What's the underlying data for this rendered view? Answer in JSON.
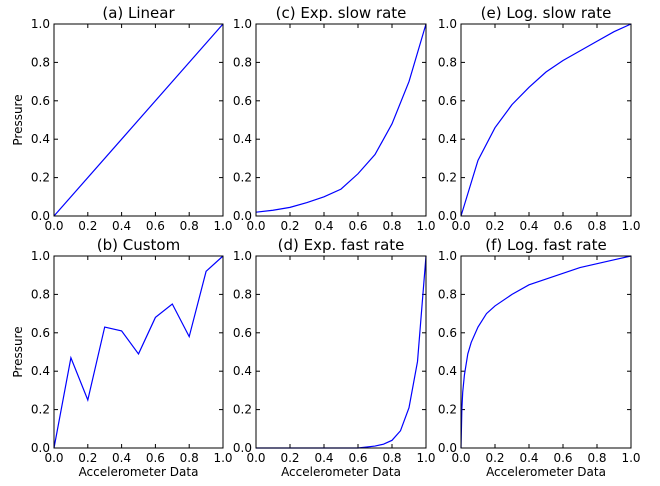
{
  "chart_data": [
    {
      "type": "line",
      "title": "(a) Linear",
      "xlabel": "",
      "ylabel": "Pressure",
      "xlim": [
        0.0,
        1.0
      ],
      "ylim": [
        0.0,
        1.0
      ],
      "xticks": [
        "0.0",
        "0.2",
        "0.4",
        "0.6",
        "0.8",
        "1.0"
      ],
      "yticks": [
        "0.0",
        "0.2",
        "0.4",
        "0.6",
        "0.8",
        "1.0"
      ],
      "grid": false,
      "series": [
        {
          "color": "#0000ff",
          "x": [
            0.0,
            1.0
          ],
          "y": [
            0.0,
            1.0
          ]
        }
      ]
    },
    {
      "type": "line",
      "title": "(c) Exp. slow rate",
      "xlabel": "",
      "ylabel": "",
      "xlim": [
        0.0,
        1.0
      ],
      "ylim": [
        0.0,
        1.0
      ],
      "xticks": [
        "0.0",
        "0.2",
        "0.4",
        "0.6",
        "0.8",
        "1.0"
      ],
      "yticks": [
        "0.0",
        "0.2",
        "0.4",
        "0.6",
        "0.8",
        "1.0"
      ],
      "grid": false,
      "series": [
        {
          "color": "#0000ff",
          "x": [
            0.0,
            0.1,
            0.2,
            0.3,
            0.4,
            0.5,
            0.6,
            0.7,
            0.8,
            0.9,
            1.0
          ],
          "y": [
            0.02,
            0.03,
            0.045,
            0.07,
            0.1,
            0.14,
            0.22,
            0.32,
            0.48,
            0.7,
            1.0
          ]
        }
      ]
    },
    {
      "type": "line",
      "title": "(e) Log. slow rate",
      "xlabel": "",
      "ylabel": "",
      "xlim": [
        0.0,
        1.0
      ],
      "ylim": [
        0.0,
        1.0
      ],
      "xticks": [
        "0.0",
        "0.2",
        "0.4",
        "0.6",
        "0.8",
        "1.0"
      ],
      "yticks": [
        "0.0",
        "0.2",
        "0.4",
        "0.6",
        "0.8",
        "1.0"
      ],
      "grid": false,
      "series": [
        {
          "color": "#0000ff",
          "x": [
            0.0,
            0.1,
            0.2,
            0.3,
            0.4,
            0.5,
            0.6,
            0.7,
            0.8,
            0.9,
            1.0
          ],
          "y": [
            0.0,
            0.29,
            0.46,
            0.58,
            0.67,
            0.75,
            0.81,
            0.86,
            0.91,
            0.96,
            1.0
          ]
        }
      ]
    },
    {
      "type": "line",
      "title": "(b) Custom",
      "xlabel": "Accelerometer Data",
      "ylabel": "Pressure",
      "xlim": [
        0.0,
        1.0
      ],
      "ylim": [
        0.0,
        1.0
      ],
      "xticks": [
        "0.0",
        "0.2",
        "0.4",
        "0.6",
        "0.8",
        "1.0"
      ],
      "yticks": [
        "0.0",
        "0.2",
        "0.4",
        "0.6",
        "0.8",
        "1.0"
      ],
      "grid": false,
      "series": [
        {
          "color": "#0000ff",
          "x": [
            0.0,
            0.1,
            0.2,
            0.3,
            0.4,
            0.5,
            0.6,
            0.7,
            0.8,
            0.9,
            1.0
          ],
          "y": [
            0.0,
            0.47,
            0.25,
            0.63,
            0.61,
            0.49,
            0.68,
            0.75,
            0.58,
            0.92,
            1.0
          ]
        }
      ]
    },
    {
      "type": "line",
      "title": "(d) Exp. fast rate",
      "xlabel": "Accelerometer Data",
      "ylabel": "",
      "xlim": [
        0.0,
        1.0
      ],
      "ylim": [
        0.0,
        1.0
      ],
      "xticks": [
        "0.0",
        "0.2",
        "0.4",
        "0.6",
        "0.8",
        "1.0"
      ],
      "yticks": [
        "0.0",
        "0.2",
        "0.4",
        "0.6",
        "0.8",
        "1.0"
      ],
      "grid": false,
      "series": [
        {
          "color": "#0000ff",
          "x": [
            0.0,
            0.5,
            0.6,
            0.7,
            0.75,
            0.8,
            0.85,
            0.9,
            0.95,
            1.0
          ],
          "y": [
            0.0,
            0.0,
            0.0,
            0.01,
            0.02,
            0.04,
            0.09,
            0.21,
            0.45,
            1.0
          ]
        }
      ]
    },
    {
      "type": "line",
      "title": "(f) Log. fast rate",
      "xlabel": "Accelerometer Data",
      "ylabel": "",
      "xlim": [
        0.0,
        1.0
      ],
      "ylim": [
        0.0,
        1.0
      ],
      "xticks": [
        "0.0",
        "0.2",
        "0.4",
        "0.6",
        "0.8",
        "1.0"
      ],
      "yticks": [
        "0.0",
        "0.2",
        "0.4",
        "0.6",
        "0.8",
        "1.0"
      ],
      "grid": false,
      "series": [
        {
          "color": "#0000ff",
          "x": [
            0.0,
            0.005,
            0.01,
            0.02,
            0.04,
            0.06,
            0.1,
            0.15,
            0.2,
            0.3,
            0.4,
            0.5,
            0.6,
            0.7,
            0.8,
            0.9,
            1.0
          ],
          "y": [
            0.0,
            0.2,
            0.29,
            0.38,
            0.49,
            0.55,
            0.63,
            0.7,
            0.74,
            0.8,
            0.85,
            0.88,
            0.91,
            0.94,
            0.96,
            0.98,
            1.0
          ]
        }
      ]
    }
  ]
}
